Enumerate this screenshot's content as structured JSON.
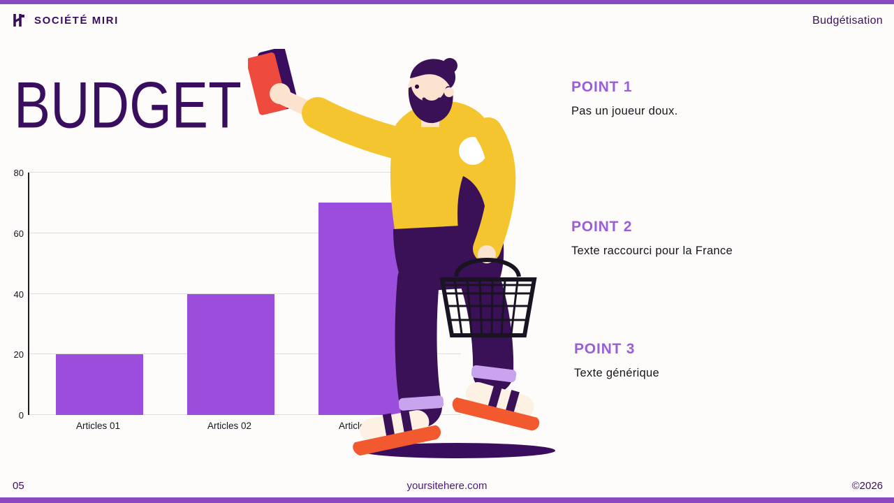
{
  "header": {
    "brand": "SOCIÉTÉ MIRI",
    "section": "Budgétisation"
  },
  "title": "BUDGET",
  "points": [
    {
      "label": "POINT 1",
      "text": "Pas un joueur doux."
    },
    {
      "label": "POINT 2",
      "text": "Texte raccourci pour la France"
    },
    {
      "label": "POINT 3",
      "text": "Texte générique"
    }
  ],
  "footer": {
    "page_number": "05",
    "website": "yoursitehere.com",
    "copyright": "©2026"
  },
  "icons": {
    "logo": "brand-logo-icon"
  },
  "colors": {
    "accent": "#9a5fd6",
    "dark": "#3a0e5e",
    "strip": "#8a49c0",
    "text": "#15151c"
  },
  "chart_data": {
    "type": "bar",
    "title": "",
    "xlabel": "",
    "ylabel": "",
    "categories": [
      "Articles 01",
      "Articles 02",
      "Articles 03"
    ],
    "values": [
      20,
      40,
      70
    ],
    "ylim": [
      0,
      80
    ],
    "yticks": [
      0,
      20,
      40,
      60,
      80
    ],
    "bar_color": "#9b4edb",
    "grid": "horizontal",
    "legend": "none"
  }
}
